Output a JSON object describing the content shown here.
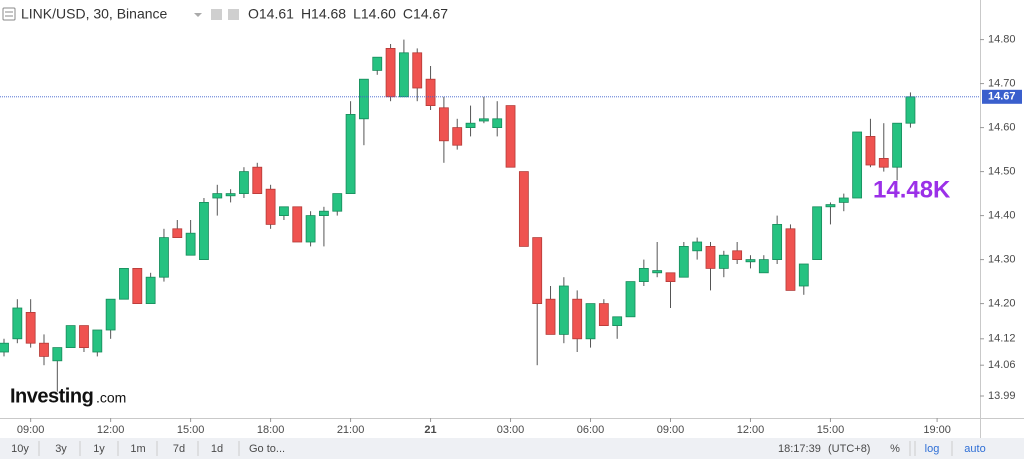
{
  "chart_data": {
    "type": "candlestick",
    "header": {
      "symbol": "LINK/USD, 30, Binance",
      "ohlc": [
        "O14.61",
        "H14.68",
        "L14.60",
        "C14.67"
      ]
    },
    "annotation": "14.48K",
    "watermark": [
      "Investing",
      ".com"
    ],
    "last_price": 14.67,
    "up_color": "#26c281",
    "down_color": "#ef5350",
    "categories": [
      null,
      null,
      "09:00",
      null,
      null,
      null,
      null,
      null,
      "12:00",
      null,
      null,
      null,
      null,
      null,
      "15:00",
      null,
      null,
      null,
      null,
      null,
      "18:00",
      null,
      null,
      null,
      null,
      null,
      "21:00",
      null,
      null,
      null,
      null,
      null,
      "21",
      null,
      null,
      null,
      null,
      null,
      "03:00",
      null,
      null,
      null,
      null,
      null,
      "06:00",
      null,
      null,
      null,
      null,
      null,
      "09:00",
      null,
      null,
      null,
      null,
      null,
      "12:00",
      null,
      null,
      null,
      null,
      null,
      "15:00",
      null,
      null,
      null,
      null,
      null,
      null,
      null,
      "19:00"
    ],
    "open": [
      14.09,
      14.12,
      14.18,
      14.11,
      14.07,
      14.1,
      14.15,
      14.09,
      14.14,
      14.21,
      14.28,
      14.2,
      14.26,
      14.37,
      14.31,
      14.3,
      14.44,
      14.445,
      14.45,
      14.51,
      14.46,
      14.4,
      14.42,
      14.34,
      14.4,
      14.41,
      14.45,
      14.62,
      14.73,
      14.78,
      14.67,
      14.77,
      14.71,
      14.645,
      14.6,
      14.6,
      14.615,
      14.6,
      14.65,
      14.5,
      14.35,
      14.21,
      14.13,
      14.21,
      14.12,
      14.2,
      14.15,
      14.17,
      14.25,
      14.27,
      14.27,
      14.26,
      14.32,
      14.33,
      14.28,
      14.32,
      14.295,
      14.27,
      14.3,
      14.37,
      14.24,
      14.3,
      14.42,
      14.43,
      14.44,
      14.58,
      14.53,
      14.51,
      14.61,
      null,
      null
    ],
    "high": [
      14.12,
      14.21,
      14.21,
      14.13,
      14.1,
      14.15,
      14.15,
      14.14,
      14.21,
      14.28,
      14.28,
      14.27,
      14.37,
      14.39,
      14.39,
      14.44,
      14.47,
      14.46,
      14.51,
      14.52,
      14.47,
      14.42,
      14.42,
      14.41,
      14.42,
      14.45,
      14.66,
      14.71,
      14.76,
      14.79,
      14.8,
      14.78,
      14.74,
      14.67,
      14.62,
      14.65,
      14.67,
      14.66,
      14.65,
      14.5,
      14.35,
      14.24,
      14.26,
      14.23,
      14.2,
      14.21,
      14.17,
      14.25,
      14.3,
      14.34,
      14.27,
      14.34,
      14.35,
      14.34,
      14.32,
      14.34,
      14.31,
      14.31,
      14.4,
      14.38,
      14.29,
      14.42,
      14.43,
      14.45,
      14.59,
      14.62,
      14.61,
      14.61,
      14.68,
      null,
      null
    ],
    "low": [
      14.08,
      14.11,
      14.1,
      14.06,
      14.0,
      14.1,
      14.09,
      14.08,
      14.12,
      14.21,
      14.2,
      14.2,
      14.25,
      14.35,
      14.31,
      14.3,
      14.4,
      14.43,
      14.44,
      14.45,
      14.37,
      14.39,
      14.34,
      14.33,
      14.33,
      14.4,
      14.45,
      14.56,
      14.72,
      14.66,
      14.67,
      14.66,
      14.64,
      14.52,
      14.55,
      14.58,
      14.61,
      14.58,
      14.51,
      14.33,
      14.06,
      14.13,
      14.11,
      14.09,
      14.1,
      14.15,
      14.12,
      14.17,
      14.24,
      14.26,
      14.19,
      14.26,
      14.3,
      14.23,
      14.26,
      14.29,
      14.28,
      14.27,
      14.29,
      14.23,
      14.22,
      14.3,
      14.38,
      14.41,
      14.44,
      14.51,
      14.5,
      14.48,
      14.6,
      null,
      null
    ],
    "close": [
      14.11,
      14.19,
      14.11,
      14.08,
      14.1,
      14.15,
      14.1,
      14.14,
      14.21,
      14.28,
      14.2,
      14.26,
      14.35,
      14.35,
      14.36,
      14.43,
      14.45,
      14.45,
      14.5,
      14.45,
      14.38,
      14.42,
      14.34,
      14.4,
      14.41,
      14.45,
      14.63,
      14.71,
      14.76,
      14.67,
      14.77,
      14.69,
      14.65,
      14.57,
      14.56,
      14.61,
      14.62,
      14.62,
      14.51,
      14.33,
      14.2,
      14.13,
      14.24,
      14.12,
      14.2,
      14.15,
      14.17,
      14.25,
      14.28,
      14.275,
      14.25,
      14.33,
      14.34,
      14.28,
      14.31,
      14.3,
      14.3,
      14.3,
      14.38,
      14.23,
      14.29,
      14.42,
      14.425,
      14.44,
      14.59,
      14.515,
      14.51,
      14.61,
      14.67,
      null,
      null
    ],
    "ylim": [
      13.94,
      14.89
    ],
    "yticks": [
      {
        "value": 14.8,
        "label": "14.80"
      },
      {
        "value": 14.7,
        "label": "14.70"
      },
      {
        "value": 14.6,
        "label": "14.60"
      },
      {
        "value": 14.5,
        "label": "14.50"
      },
      {
        "value": 14.4,
        "label": "14.40"
      },
      {
        "value": 14.3,
        "label": "14.30"
      },
      {
        "value": 14.2,
        "label": "14.20"
      },
      14.12,
      14.06,
      13.99
    ],
    "toolbar": {
      "ranges": [
        "10y",
        "3y",
        "1y",
        "1m",
        "7d",
        "1d"
      ],
      "goto": "Go to...",
      "clock": "18:17:39",
      "timezone": "(UTC+8)",
      "options": [
        "%",
        "log",
        "auto"
      ]
    }
  }
}
